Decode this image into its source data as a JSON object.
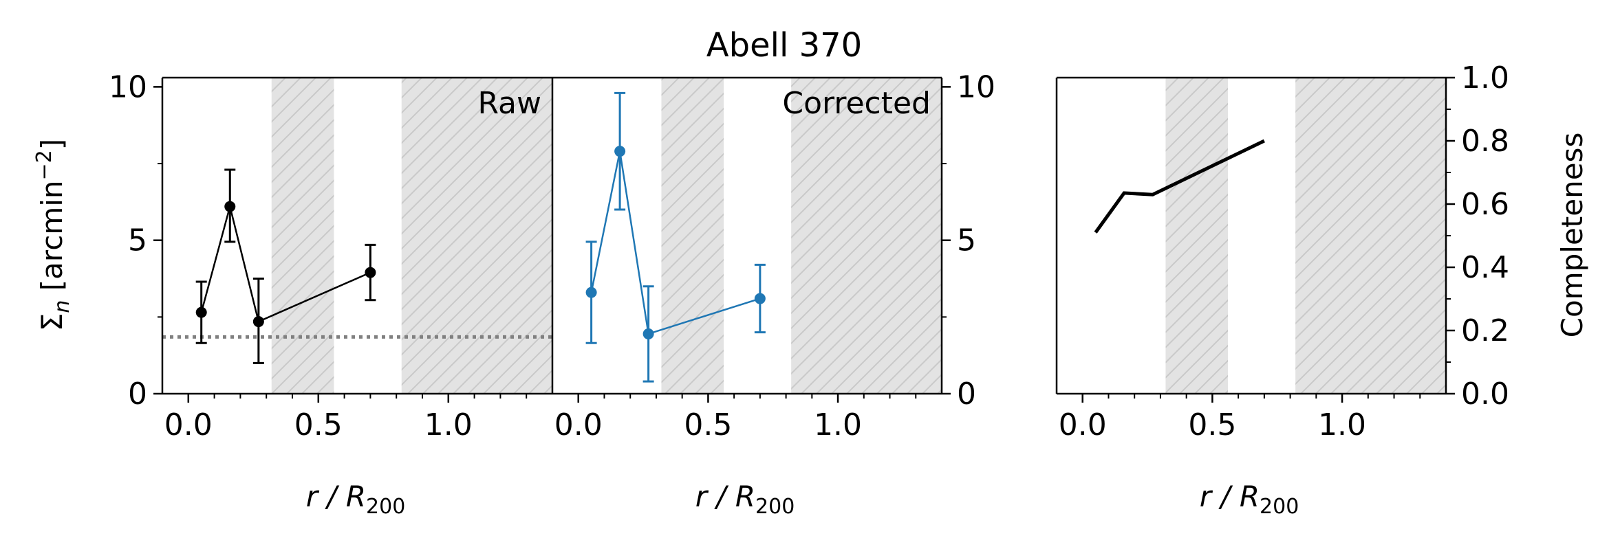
{
  "figure": {
    "title": "Abell 370"
  },
  "chart_data": [
    {
      "id": "raw",
      "type": "line",
      "panel_label": "Raw",
      "xlabel": "r / R",
      "xlabel_sub": "200",
      "ylabel": "Σ",
      "ylabel_sub": "n",
      "ylabel_unit": " [arcmin",
      "ylabel_sup": "−2",
      "ylabel_end": "]",
      "xlim": [
        -0.1,
        1.4
      ],
      "ylim": [
        0,
        10.3
      ],
      "xticks": [
        {
          "v": 0,
          "label": "0.0"
        },
        {
          "v": 0.5,
          "label": "0.5"
        },
        {
          "v": 1.0,
          "label": "1.0"
        }
      ],
      "yticks": [
        {
          "v": 0,
          "label": "0"
        },
        {
          "v": 5,
          "label": "5"
        },
        {
          "v": 10,
          "label": "10"
        }
      ],
      "shaded_x_ranges": [
        [
          0.32,
          0.56
        ],
        [
          0.82,
          1.4
        ]
      ],
      "reference_line": {
        "y": 1.85,
        "style": "dotted",
        "color": "#808080"
      },
      "series": [
        {
          "color": "#000000",
          "x": [
            0.05,
            0.16,
            0.27,
            0.7
          ],
          "y": [
            2.65,
            6.1,
            2.35,
            3.95
          ],
          "yerr_low": [
            1.0,
            1.15,
            1.35,
            0.9
          ],
          "yerr_high": [
            1.0,
            1.2,
            1.4,
            0.9
          ]
        }
      ]
    },
    {
      "id": "corrected",
      "type": "line",
      "panel_label": "Corrected",
      "xlabel": "r / R",
      "xlabel_sub": "200",
      "xlim": [
        -0.1,
        1.4
      ],
      "ylim": [
        0,
        10.3
      ],
      "xticks": [
        {
          "v": 0,
          "label": "0.0"
        },
        {
          "v": 0.5,
          "label": "0.5"
        },
        {
          "v": 1.0,
          "label": "1.0"
        }
      ],
      "yticks": [
        {
          "v": 0,
          "label": "0"
        },
        {
          "v": 5,
          "label": "5"
        },
        {
          "v": 10,
          "label": "10"
        }
      ],
      "shaded_x_ranges": [
        [
          0.32,
          0.56
        ],
        [
          0.82,
          1.4
        ]
      ],
      "series": [
        {
          "color": "#1f77b4",
          "x": [
            0.05,
            0.16,
            0.27,
            0.7
          ],
          "y": [
            3.3,
            7.9,
            1.95,
            3.1
          ],
          "yerr_low": [
            1.65,
            1.9,
            1.55,
            1.1
          ],
          "yerr_high": [
            1.65,
            1.9,
            1.55,
            1.1
          ]
        }
      ]
    },
    {
      "id": "completeness",
      "type": "line",
      "xlabel": "r / R",
      "xlabel_sub": "200",
      "ylabel": "Completeness",
      "xlim": [
        -0.1,
        1.4
      ],
      "ylim": [
        0,
        1.0
      ],
      "xticks": [
        {
          "v": 0,
          "label": "0.0"
        },
        {
          "v": 0.5,
          "label": "0.5"
        },
        {
          "v": 1.0,
          "label": "1.0"
        }
      ],
      "yticks": [
        {
          "v": 0,
          "label": "0.0"
        },
        {
          "v": 0.2,
          "label": "0.2"
        },
        {
          "v": 0.4,
          "label": "0.4"
        },
        {
          "v": 0.6,
          "label": "0.6"
        },
        {
          "v": 0.8,
          "label": "0.8"
        },
        {
          "v": 1.0,
          "label": "1.0"
        }
      ],
      "shaded_x_ranges": [
        [
          0.32,
          0.56
        ],
        [
          0.82,
          1.4
        ]
      ],
      "series": [
        {
          "color": "#000000",
          "x": [
            0.05,
            0.16,
            0.27,
            0.7
          ],
          "y": [
            0.51,
            0.635,
            0.63,
            0.8
          ]
        }
      ]
    }
  ]
}
